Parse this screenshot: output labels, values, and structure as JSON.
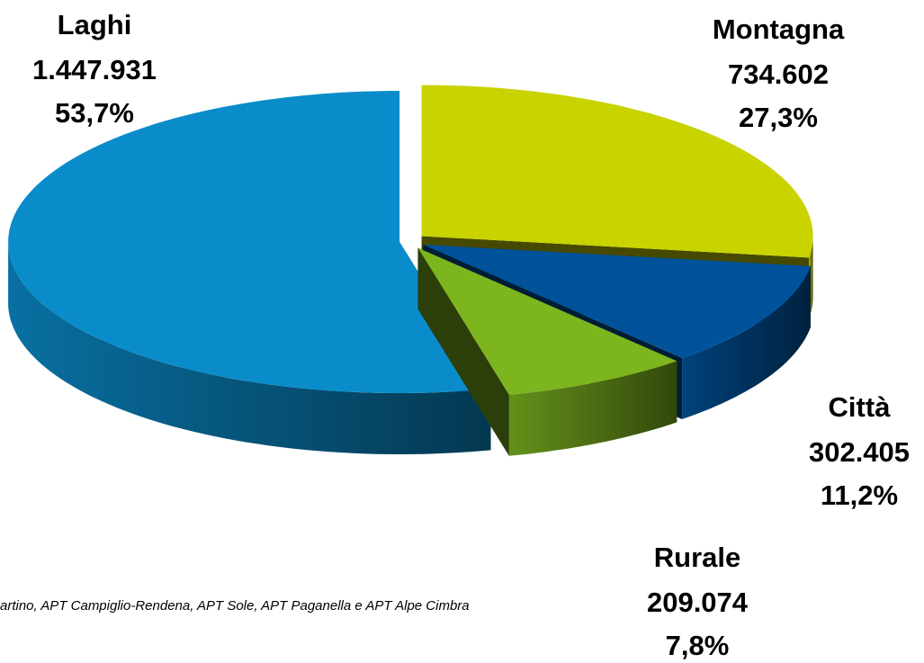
{
  "chart_data": {
    "type": "pie",
    "categories": [
      "Laghi",
      "Montagna",
      "Città",
      "Rurale"
    ],
    "values": [
      1447931,
      734602,
      302405,
      209074
    ],
    "value_labels": [
      "1.447.931",
      "734.602",
      "302.405",
      "209.074"
    ],
    "percentages": [
      53.7,
      27.3,
      11.2,
      7.8
    ],
    "percentage_labels": [
      "53,7%",
      "27,3%",
      "11,2%",
      "7,8%"
    ],
    "colors": [
      "#0a8ccb",
      "#c8d300",
      "#00539b",
      "#7db51f"
    ],
    "note": "artino, APT Campiglio-Rendena, APT Sole, APT Paganella e APT Alpe Cimbra"
  }
}
